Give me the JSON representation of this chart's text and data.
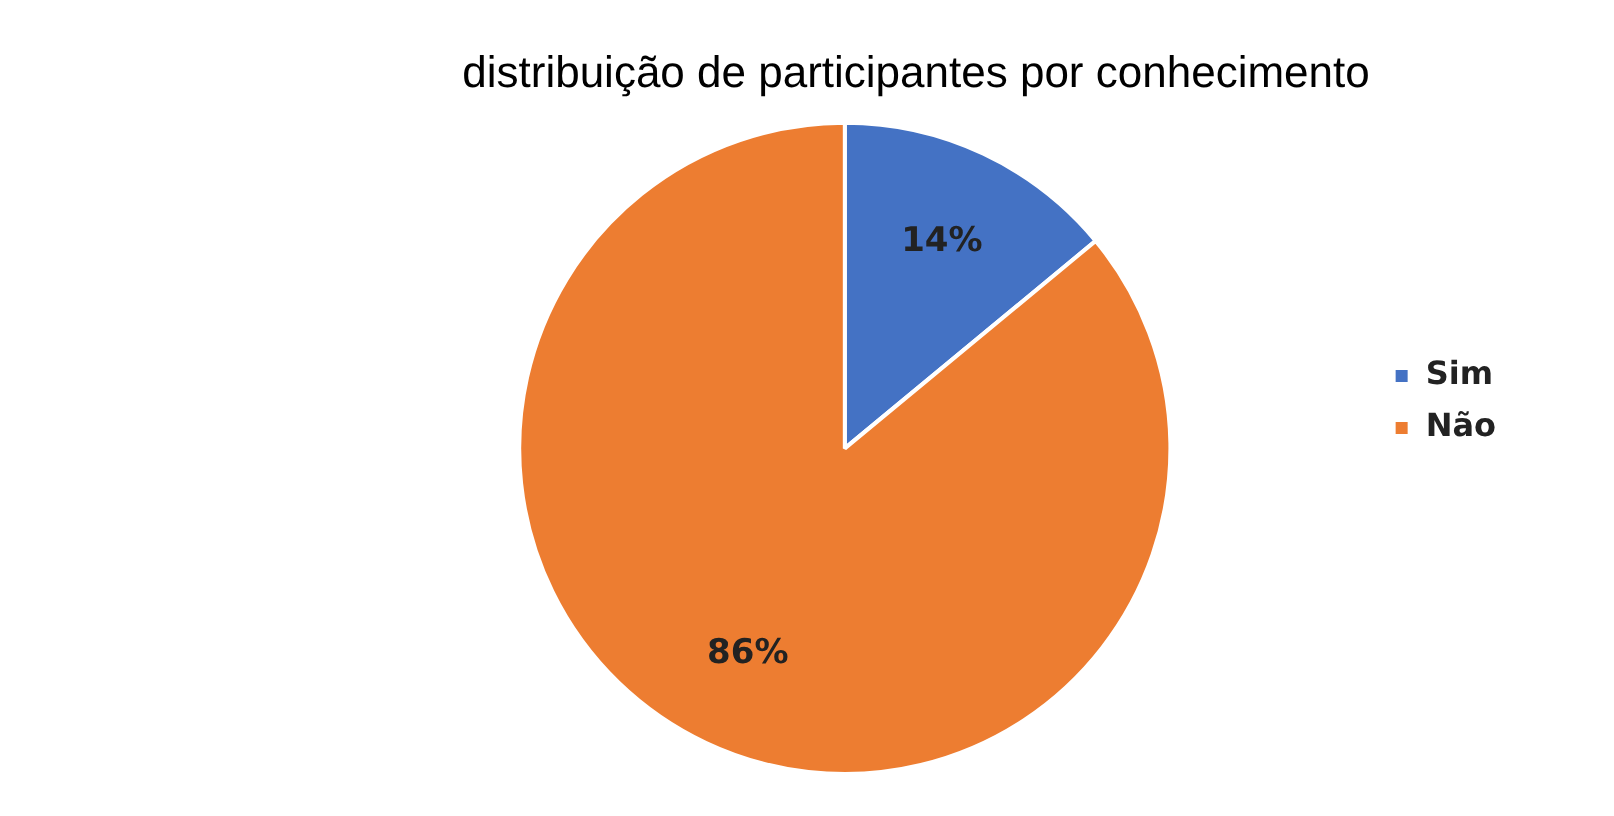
{
  "chart_data": {
    "type": "pie",
    "title": "distribuição de participantes por conhecimento",
    "categories": [
      "Sim",
      "Não"
    ],
    "values": [
      14,
      86
    ],
    "colors": [
      "#4472c4",
      "#ed7d31"
    ],
    "value_labels": [
      "14%",
      "86%"
    ],
    "legend": "right"
  }
}
